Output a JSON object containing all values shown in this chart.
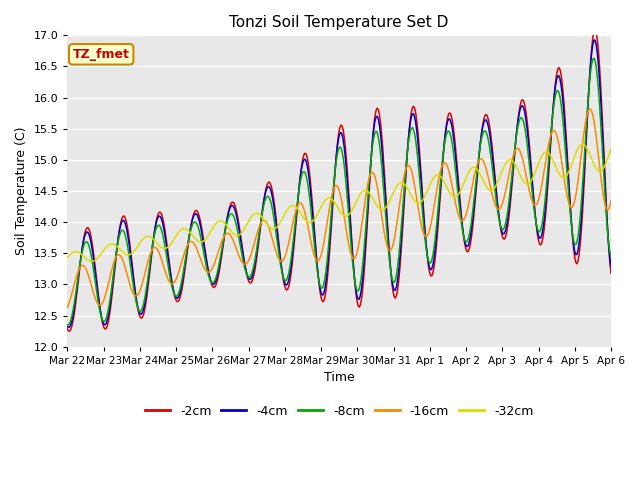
{
  "title": "Tonzi Soil Temperature Set D",
  "xlabel": "Time",
  "ylabel": "Soil Temperature (C)",
  "ylim": [
    12.0,
    17.0
  ],
  "yticks": [
    12.0,
    12.5,
    13.0,
    13.5,
    14.0,
    14.5,
    15.0,
    15.5,
    16.0,
    16.5,
    17.0
  ],
  "series_labels": [
    "-2cm",
    "-4cm",
    "-8cm",
    "-16cm",
    "-32cm"
  ],
  "series_colors": [
    "#dd0000",
    "#0000cc",
    "#00aa00",
    "#ff8800",
    "#dddd00"
  ],
  "annotation_text": "TZ_fmet",
  "annotation_box_color": "#ffffcc",
  "annotation_border_color": "#cc8800",
  "background_color": "#e8e8e8",
  "grid_color": "#ffffff",
  "x_tick_labels": [
    "Mar 22",
    "Mar 23",
    "Mar 24",
    "Mar 25",
    "Mar 26",
    "Mar 27",
    "Mar 28",
    "Mar 29",
    "Mar 30",
    "Mar 31",
    "Apr 1",
    "Apr 2",
    "Apr 3",
    "Apr 4",
    "Apr 5",
    "Apr 6"
  ],
  "n_points": 480,
  "days": 15
}
